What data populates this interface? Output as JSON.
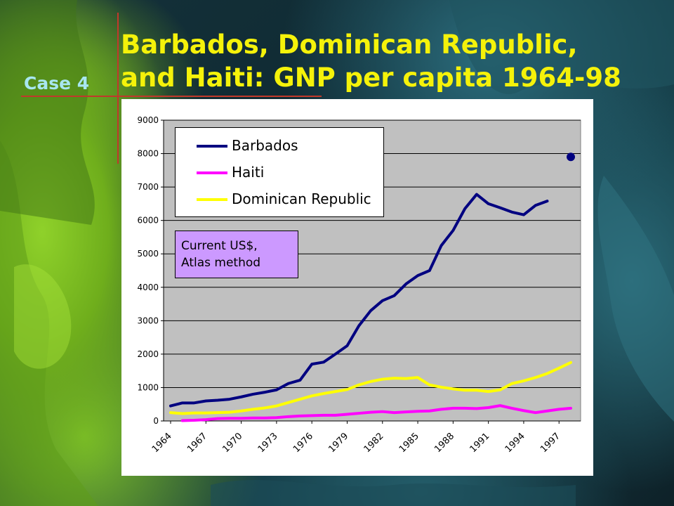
{
  "slide": {
    "case_label": "Case 4",
    "title_line1": "Barbados, Dominican Republic,",
    "title_line2": "and Haiti: GNP per capita 1964-98"
  },
  "colors": {
    "title": "#f5f20a",
    "case_label": "#a8e6f0",
    "accent_line": "#c0392b",
    "plot_bg": "#c0c0c0",
    "annotation_bg": "#cc99ff"
  },
  "annotation": {
    "line1": "Current US$,",
    "line2": "Atlas method"
  },
  "chart_data": {
    "type": "line",
    "title": "",
    "xlabel": "",
    "ylabel": "",
    "ylim": [
      0,
      9000
    ],
    "yticks": [
      0,
      1000,
      2000,
      3000,
      4000,
      5000,
      6000,
      7000,
      8000,
      9000
    ],
    "x_tick_labels": [
      "1964",
      "1967",
      "1970",
      "1973",
      "1976",
      "1979",
      "1982",
      "1985",
      "1988",
      "1991",
      "1994",
      "1997"
    ],
    "x_range": [
      1964,
      1998
    ],
    "grid": "horizontal",
    "legend_position": "top-left",
    "series": [
      {
        "name": "Barbados",
        "color": "#000080",
        "x": [
          1964,
          1965,
          1966,
          1967,
          1968,
          1969,
          1970,
          1971,
          1972,
          1973,
          1974,
          1975,
          1976,
          1977,
          1978,
          1979,
          1980,
          1981,
          1982,
          1983,
          1984,
          1985,
          1986,
          1987,
          1988,
          1989,
          1990,
          1991,
          1992,
          1993,
          1994,
          1995,
          1996
        ],
        "values": [
          450,
          540,
          540,
          600,
          620,
          650,
          720,
          800,
          860,
          930,
          1120,
          1220,
          1700,
          1760,
          2000,
          2250,
          2850,
          3300,
          3600,
          3750,
          4100,
          4350,
          4500,
          5250,
          5700,
          6350,
          6780,
          6500,
          6380,
          6250,
          6170,
          6450,
          6580
        ]
      },
      {
        "name": "Haiti",
        "color": "#ff00ff",
        "x": [
          1965,
          1966,
          1967,
          1968,
          1969,
          1970,
          1971,
          1972,
          1973,
          1974,
          1975,
          1976,
          1977,
          1978,
          1979,
          1980,
          1981,
          1982,
          1983,
          1984,
          1985,
          1986,
          1987,
          1988,
          1989,
          1990,
          1991,
          1992,
          1993,
          1994,
          1995,
          1996,
          1997,
          1998
        ],
        "values": [
          10,
          20,
          40,
          70,
          80,
          80,
          90,
          90,
          100,
          130,
          150,
          160,
          170,
          170,
          200,
          230,
          260,
          280,
          250,
          270,
          290,
          300,
          350,
          380,
          380,
          370,
          400,
          460,
          380,
          310,
          250,
          300,
          350,
          380
        ]
      },
      {
        "name": "Dominican Republic",
        "color": "#ffff00",
        "x": [
          1964,
          1965,
          1966,
          1967,
          1968,
          1969,
          1970,
          1971,
          1972,
          1973,
          1974,
          1975,
          1976,
          1977,
          1978,
          1979,
          1980,
          1981,
          1982,
          1983,
          1984,
          1985,
          1986,
          1987,
          1988,
          1989,
          1990,
          1991,
          1992,
          1993,
          1994,
          1995,
          1996,
          1997,
          1998
        ],
        "values": [
          250,
          220,
          240,
          240,
          250,
          260,
          300,
          350,
          390,
          450,
          550,
          650,
          750,
          820,
          880,
          940,
          1080,
          1180,
          1250,
          1280,
          1270,
          1300,
          1080,
          1010,
          960,
          920,
          920,
          880,
          930,
          1120,
          1200,
          1300,
          1420,
          1580,
          1750
        ]
      }
    ],
    "extra_points": [
      {
        "series": "Barbados",
        "x": 1998,
        "value": 7900,
        "marker": "circle"
      }
    ]
  }
}
